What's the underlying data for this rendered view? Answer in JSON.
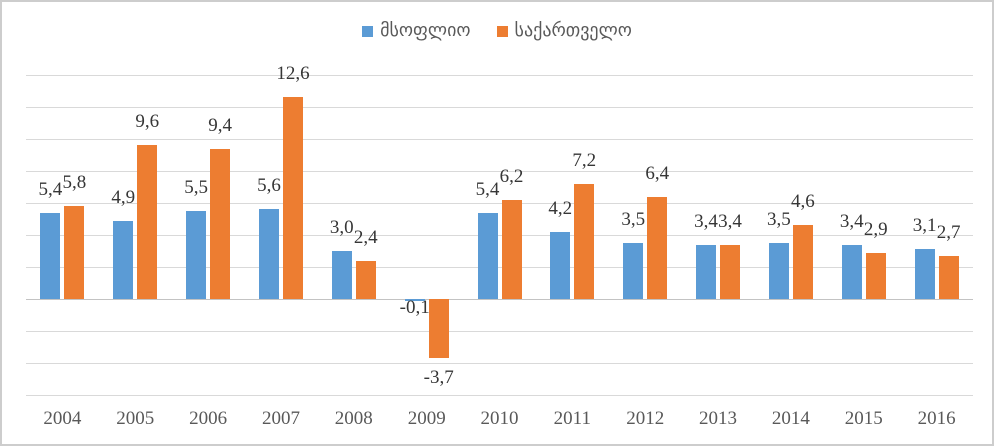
{
  "chart_data": {
    "type": "bar",
    "title": "",
    "xlabel": "",
    "ylabel": "",
    "categories": [
      "2004",
      "2005",
      "2006",
      "2007",
      "2008",
      "2009",
      "2010",
      "2011",
      "2012",
      "2013",
      "2014",
      "2015",
      "2016"
    ],
    "series": [
      {
        "name": "მსოფლიო",
        "color": "#5B9BD5",
        "values": [
          5.4,
          4.9,
          5.5,
          5.6,
          3.0,
          -0.1,
          5.4,
          4.2,
          3.5,
          3.4,
          3.5,
          3.4,
          3.1
        ],
        "labels": [
          "5,4",
          "4,9",
          "5,5",
          "5,6",
          "3,0",
          "-0,1",
          "5,4",
          "4,2",
          "3,5",
          "3,4",
          "3,5",
          "3,4",
          "3,1"
        ]
      },
      {
        "name": "საქართველო",
        "color": "#ED7D31",
        "values": [
          5.8,
          9.6,
          9.4,
          12.6,
          2.4,
          -3.7,
          6.2,
          7.2,
          6.4,
          3.4,
          4.6,
          2.9,
          2.7
        ],
        "labels": [
          "5,8",
          "9,6",
          "9,4",
          "12,6",
          "2,4",
          "-3,7",
          "6,2",
          "7,2",
          "6,4",
          "3,4",
          "4,6",
          "2,9",
          "2,7"
        ]
      }
    ],
    "ylim": [
      -6,
      14
    ],
    "grid_step": 2,
    "grid": true,
    "y_axis_labels_visible": false,
    "legend_position": "top",
    "decimal_separator": ",",
    "colors": {
      "gridline": "#D9D9D9",
      "axis": "#C3C3C3",
      "value_label_text": "#363636",
      "tick_text": "#595959",
      "legend_text": "#595959",
      "border": "#CDCDCD",
      "background": "#FFFFFF"
    }
  }
}
